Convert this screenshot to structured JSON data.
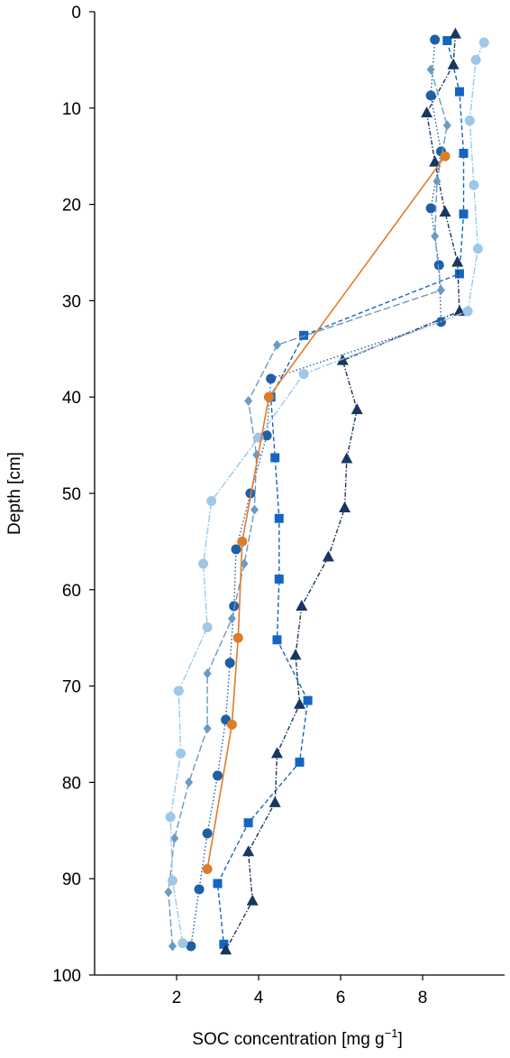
{
  "chart_data": {
    "type": "line",
    "orientation": "depth-profile",
    "xlabel": "SOC concentration [mg g",
    "xlabel_sup": "−1",
    "xlabel_end": "]",
    "ylabel": "Depth [cm]",
    "xlim": [
      0,
      10
    ],
    "ylim": [
      0,
      100
    ],
    "y_inverted": true,
    "xticks": [
      2,
      4,
      6,
      8
    ],
    "yticks": [
      0,
      10,
      20,
      30,
      40,
      50,
      60,
      70,
      80,
      90,
      100
    ],
    "grid": false,
    "legend": "none",
    "series": [
      {
        "color": "#1565c0",
        "marker": "square",
        "dash": "5,3",
        "points": [
          [
            8.6,
            3.0
          ],
          [
            8.9,
            8.3
          ],
          [
            9.0,
            14.7
          ],
          [
            9.0,
            21.0
          ],
          [
            8.9,
            27.2
          ],
          [
            5.1,
            33.6
          ],
          [
            4.3,
            40.0
          ],
          [
            4.4,
            46.3
          ],
          [
            4.5,
            52.6
          ],
          [
            4.5,
            58.9
          ],
          [
            4.45,
            65.2
          ],
          [
            5.2,
            71.5
          ],
          [
            5.0,
            77.9
          ],
          [
            3.75,
            84.2
          ],
          [
            3.0,
            90.5
          ],
          [
            3.15,
            96.8
          ]
        ]
      },
      {
        "color": "#17375e",
        "marker": "triangle",
        "dash": "5,2,1.5,2",
        "points": [
          [
            8.8,
            2.3
          ],
          [
            8.75,
            5.5
          ],
          [
            8.1,
            10.5
          ],
          [
            8.3,
            15.6
          ],
          [
            8.55,
            20.8
          ],
          [
            8.85,
            26.0
          ],
          [
            8.9,
            31.1
          ],
          [
            6.05,
            36.2
          ],
          [
            6.4,
            41.3
          ],
          [
            6.15,
            46.4
          ],
          [
            6.1,
            51.5
          ],
          [
            5.7,
            56.6
          ],
          [
            5.05,
            61.7
          ],
          [
            4.9,
            66.8
          ],
          [
            5.0,
            71.9
          ],
          [
            4.45,
            77.0
          ],
          [
            4.4,
            82.1
          ],
          [
            3.75,
            87.2
          ],
          [
            3.85,
            92.3
          ],
          [
            3.2,
            97.4
          ]
        ]
      },
      {
        "color": "#1f5fa6",
        "marker": "circle",
        "dash": "1.5,2.5",
        "points": [
          [
            8.3,
            2.9
          ],
          [
            8.2,
            8.7
          ],
          [
            8.45,
            14.5
          ],
          [
            8.2,
            20.4
          ],
          [
            8.4,
            26.3
          ],
          [
            8.45,
            32.2
          ],
          [
            4.3,
            38.1
          ],
          [
            4.2,
            44.0
          ],
          [
            3.8,
            50.0
          ],
          [
            3.45,
            55.8
          ],
          [
            3.4,
            61.7
          ],
          [
            3.3,
            67.6
          ],
          [
            3.2,
            73.5
          ],
          [
            3.0,
            79.3
          ],
          [
            2.75,
            85.3
          ],
          [
            2.55,
            91.1
          ],
          [
            2.35,
            97.0
          ]
        ]
      },
      {
        "color": "#6b9ac4",
        "marker": "diamond",
        "dash": "8,3",
        "points": [
          [
            8.2,
            6.0
          ],
          [
            8.6,
            11.8
          ],
          [
            8.35,
            17.6
          ],
          [
            8.3,
            23.3
          ],
          [
            8.45,
            28.9
          ],
          [
            4.45,
            34.6
          ],
          [
            3.75,
            40.4
          ],
          [
            3.95,
            46.0
          ],
          [
            3.9,
            51.7
          ],
          [
            3.65,
            57.3
          ],
          [
            3.35,
            63.0
          ],
          [
            2.75,
            68.7
          ],
          [
            2.75,
            74.4
          ],
          [
            2.3,
            80.0
          ],
          [
            1.95,
            85.8
          ],
          [
            1.8,
            91.4
          ],
          [
            1.9,
            97.0
          ]
        ]
      },
      {
        "color": "#9ec7e8",
        "marker": "circle",
        "dash": "8,2,2,2",
        "points": [
          [
            9.5,
            3.2
          ],
          [
            9.3,
            5.0
          ],
          [
            9.15,
            11.3
          ],
          [
            9.25,
            18.0
          ],
          [
            9.35,
            24.6
          ],
          [
            9.1,
            31.1
          ],
          [
            5.1,
            37.6
          ],
          [
            4.0,
            44.2
          ],
          [
            2.85,
            50.8
          ],
          [
            2.65,
            57.3
          ],
          [
            2.75,
            63.9
          ],
          [
            2.05,
            70.5
          ],
          [
            2.1,
            77.0
          ],
          [
            1.85,
            83.6
          ],
          [
            1.9,
            90.2
          ],
          [
            2.15,
            96.7
          ]
        ]
      },
      {
        "color": "#e07b28",
        "marker": "circle",
        "dash": "",
        "points": [
          [
            8.55,
            15.0
          ],
          [
            4.25,
            40.0
          ],
          [
            3.6,
            55.0
          ],
          [
            3.5,
            65.0
          ],
          [
            3.35,
            74.0
          ],
          [
            2.75,
            89.0
          ]
        ]
      }
    ]
  }
}
